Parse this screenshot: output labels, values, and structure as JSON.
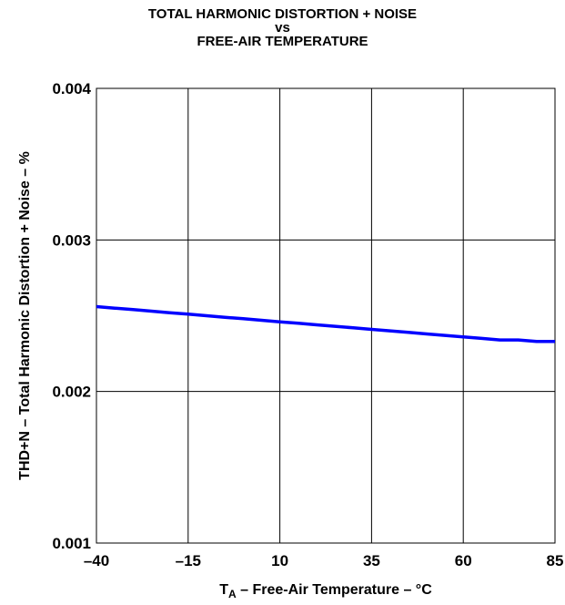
{
  "chart_data": {
    "type": "line",
    "title_lines": [
      "TOTAL HARMONIC DISTORTION + NOISE",
      "vs",
      "FREE-AIR TEMPERATURE"
    ],
    "xlabel": {
      "main": "T",
      "subscript": "A",
      "rest": " – Free-Air Temperature – °C"
    },
    "ylabel": "THD+N – Total Harmonic Distortion + Noise – %",
    "xlim": [
      -40,
      85
    ],
    "ylim": [
      0.001,
      0.004
    ],
    "x_ticks": [
      -40,
      -15,
      10,
      35,
      60,
      85
    ],
    "x_tick_labels": [
      "–40",
      "–15",
      "10",
      "35",
      "60",
      "85"
    ],
    "y_ticks": [
      0.001,
      0.002,
      0.003,
      0.004
    ],
    "y_tick_labels": [
      "0.001",
      "0.002",
      "0.003",
      "0.004"
    ],
    "grid": true,
    "series": [
      {
        "color": "#0000ff",
        "x": [
          -40,
          -35,
          -30,
          -25,
          -20,
          -15,
          -10,
          -5,
          0,
          5,
          10,
          15,
          20,
          25,
          30,
          35,
          40,
          45,
          50,
          55,
          60,
          65,
          70,
          75,
          80,
          85
        ],
        "y": [
          0.00256,
          0.00255,
          0.00254,
          0.00253,
          0.00252,
          0.00251,
          0.0025,
          0.00249,
          0.00248,
          0.00247,
          0.00246,
          0.00245,
          0.00244,
          0.00243,
          0.00242,
          0.00241,
          0.0024,
          0.00239,
          0.00238,
          0.00237,
          0.00236,
          0.00235,
          0.00234,
          0.00234,
          0.00233,
          0.00233
        ]
      }
    ]
  }
}
